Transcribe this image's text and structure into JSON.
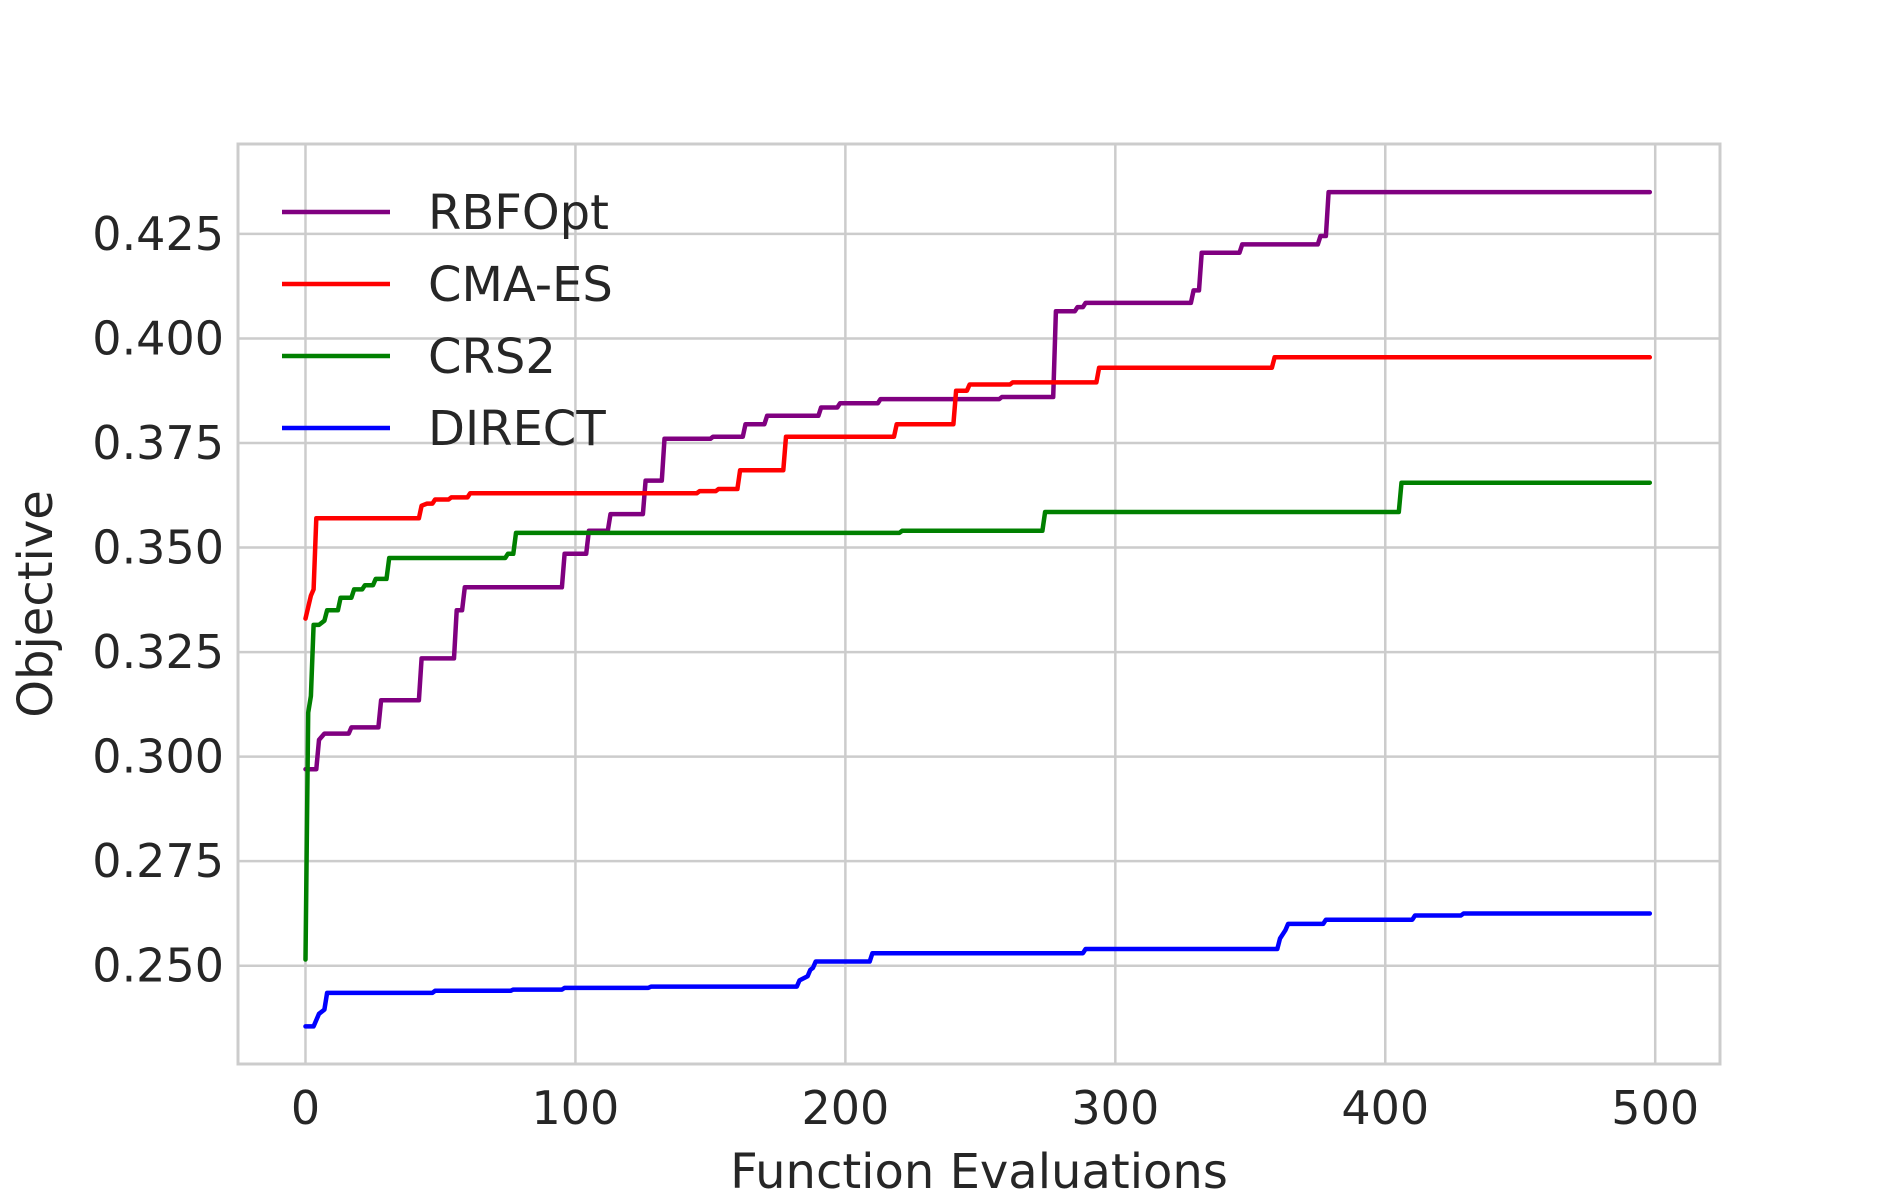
{
  "chart_data": {
    "type": "line",
    "title": "",
    "xlabel": "Function Evaluations",
    "ylabel": "Objective",
    "xlim": [
      -25,
      524
    ],
    "ylim": [
      0.2265,
      0.4465
    ],
    "xticks": [
      0,
      100,
      200,
      300,
      400,
      500
    ],
    "xtick_labels": [
      "0",
      "100",
      "200",
      "300",
      "400",
      "500"
    ],
    "yticks": [
      0.25,
      0.275,
      0.3,
      0.325,
      0.35,
      0.375,
      0.4,
      0.425
    ],
    "ytick_labels": [
      "0.250",
      "0.275",
      "0.300",
      "0.325",
      "0.350",
      "0.375",
      "0.400",
      "0.425"
    ],
    "grid": true,
    "legend_position": "top-left",
    "series": [
      {
        "name": "RBFOpt",
        "color": "#800080",
        "x": [
          0,
          2,
          4,
          5,
          7,
          16,
          17,
          27,
          28,
          42,
          43,
          55,
          56,
          58,
          59,
          95,
          96,
          104,
          105,
          112,
          113,
          125,
          126,
          132,
          133,
          150,
          151,
          162,
          163,
          170,
          171,
          190,
          191,
          197,
          198,
          212,
          213,
          243,
          244,
          257,
          258,
          275,
          277,
          278,
          285,
          286,
          288,
          289,
          328,
          329,
          331,
          332,
          346,
          347,
          375,
          376,
          378,
          379,
          498
        ],
        "y": [
          0.297,
          0.297,
          0.297,
          0.304,
          0.3055,
          0.3055,
          0.307,
          0.307,
          0.3135,
          0.3135,
          0.3235,
          0.3235,
          0.335,
          0.335,
          0.3405,
          0.3405,
          0.3485,
          0.3485,
          0.354,
          0.354,
          0.358,
          0.358,
          0.366,
          0.366,
          0.376,
          0.376,
          0.3765,
          0.3765,
          0.3795,
          0.3795,
          0.3815,
          0.3815,
          0.3835,
          0.3835,
          0.3845,
          0.3845,
          0.3855,
          0.3855,
          0.3855,
          0.3855,
          0.386,
          0.386,
          0.386,
          0.4065,
          0.4065,
          0.4075,
          0.4075,
          0.4085,
          0.4085,
          0.4115,
          0.4115,
          0.4205,
          0.4205,
          0.4225,
          0.4225,
          0.4245,
          0.4245,
          0.435,
          0.435
        ]
      },
      {
        "name": "CMA-ES",
        "color": "#ff0000",
        "x": [
          0,
          2,
          3,
          4,
          42,
          43,
          45,
          47,
          48,
          53,
          54,
          60,
          61,
          128,
          129,
          145,
          146,
          152,
          153,
          160,
          161,
          177,
          178,
          193,
          194,
          218,
          219,
          240,
          241,
          245,
          246,
          261,
          262,
          293,
          294,
          358,
          359,
          498
        ],
        "y": [
          0.333,
          0.3385,
          0.34,
          0.357,
          0.357,
          0.36,
          0.3605,
          0.3605,
          0.3615,
          0.3615,
          0.362,
          0.362,
          0.363,
          0.363,
          0.363,
          0.363,
          0.3635,
          0.3635,
          0.364,
          0.364,
          0.3685,
          0.3685,
          0.3765,
          0.3765,
          0.3765,
          0.3765,
          0.3795,
          0.3795,
          0.3875,
          0.3875,
          0.389,
          0.389,
          0.3895,
          0.3895,
          0.393,
          0.393,
          0.3955,
          0.3955
        ]
      },
      {
        "name": "CRS2",
        "color": "#008000",
        "x": [
          0,
          1,
          2,
          3,
          5,
          7,
          8,
          12,
          13,
          17,
          18,
          21,
          22,
          25,
          26,
          30,
          31,
          74,
          75,
          77,
          78,
          220,
          221,
          273,
          274,
          405,
          406,
          498
        ],
        "y": [
          0.2515,
          0.3105,
          0.3145,
          0.3315,
          0.3315,
          0.3325,
          0.335,
          0.335,
          0.338,
          0.338,
          0.34,
          0.34,
          0.341,
          0.341,
          0.3425,
          0.3425,
          0.3475,
          0.3475,
          0.3485,
          0.3485,
          0.3535,
          0.3535,
          0.354,
          0.354,
          0.3585,
          0.3585,
          0.3655,
          0.3655
        ]
      },
      {
        "name": "DIRECT",
        "color": "#0000ff",
        "x": [
          0,
          3,
          5,
          7,
          8,
          47,
          48,
          76,
          77,
          95,
          96,
          127,
          128,
          182,
          183,
          186,
          187,
          188,
          189,
          209,
          210,
          288,
          289,
          360,
          361,
          363,
          364,
          377,
          378,
          410,
          411,
          428,
          429,
          498
        ],
        "y": [
          0.2355,
          0.2355,
          0.2385,
          0.2395,
          0.2435,
          0.2435,
          0.244,
          0.244,
          0.2443,
          0.2443,
          0.2447,
          0.2447,
          0.245,
          0.245,
          0.2465,
          0.2475,
          0.249,
          0.2495,
          0.251,
          0.251,
          0.253,
          0.253,
          0.254,
          0.254,
          0.2565,
          0.2585,
          0.26,
          0.26,
          0.261,
          0.261,
          0.262,
          0.262,
          0.2625,
          0.2625
        ]
      }
    ]
  }
}
